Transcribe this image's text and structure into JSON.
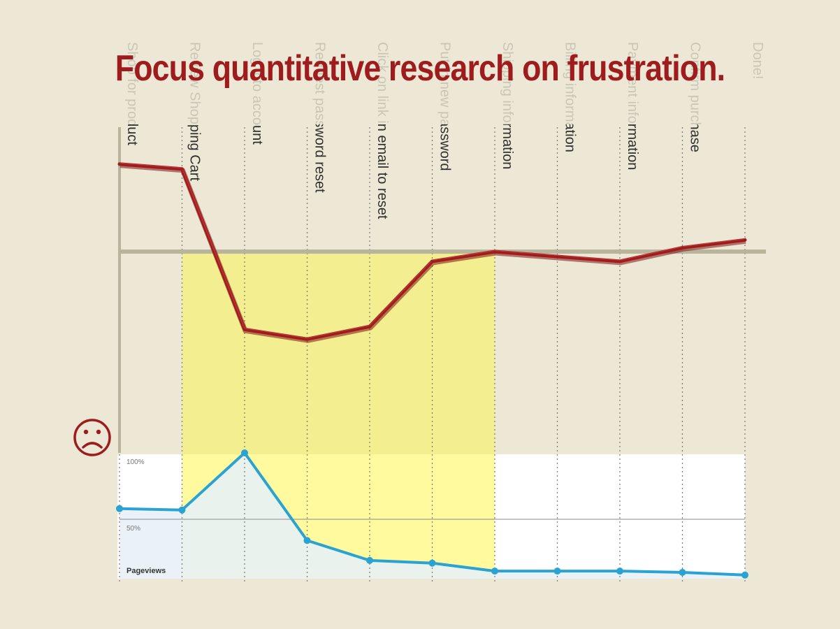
{
  "title": "Focus quantitative research on frustration.",
  "colors": {
    "background": "#ece8d5",
    "title": "#9e1b1e",
    "frustration_line": "#a01c1c",
    "pageviews_line": "#2aa3d3",
    "pageviews_fill": "#e8f1f6",
    "highlight": "#f3ee8f",
    "baseline": "#b9b49c"
  },
  "chart_data": [
    {
      "type": "line",
      "name": "frustration",
      "categories": [
        "Shop for product",
        "Review Shopping Cart",
        "Log into account",
        "Request password reset",
        "Click on link in email to reset",
        "Put in new password",
        "Shipping information",
        "Billing information",
        "Payment information",
        "Confirm purchase",
        "Done!"
      ],
      "values": [
        0.9,
        0.85,
        -0.8,
        -0.9,
        -0.77,
        -0.1,
        0.0,
        -0.05,
        -0.1,
        0.04,
        0.12
      ],
      "ylim": [
        -1.6,
        1.15
      ],
      "baseline": 0,
      "highlight_range": [
        1,
        6
      ],
      "icon": "frowny-face-icon"
    },
    {
      "type": "area",
      "name": "pageviews",
      "label": "Pageviews",
      "categories": [
        "Shop for product",
        "Review Shopping Cart",
        "Log into account",
        "Request password reset",
        "Click on link in email to reset",
        "Put in new password",
        "Shipping information",
        "Billing information",
        "Payment information",
        "Confirm purchase",
        "Done!"
      ],
      "values": [
        58,
        57,
        100,
        34,
        19,
        17,
        11,
        11,
        11,
        10,
        8
      ],
      "ylim": [
        0,
        100
      ],
      "yticks": [
        "100%",
        "50%"
      ],
      "ytick_values": [
        100,
        50
      ]
    }
  ]
}
